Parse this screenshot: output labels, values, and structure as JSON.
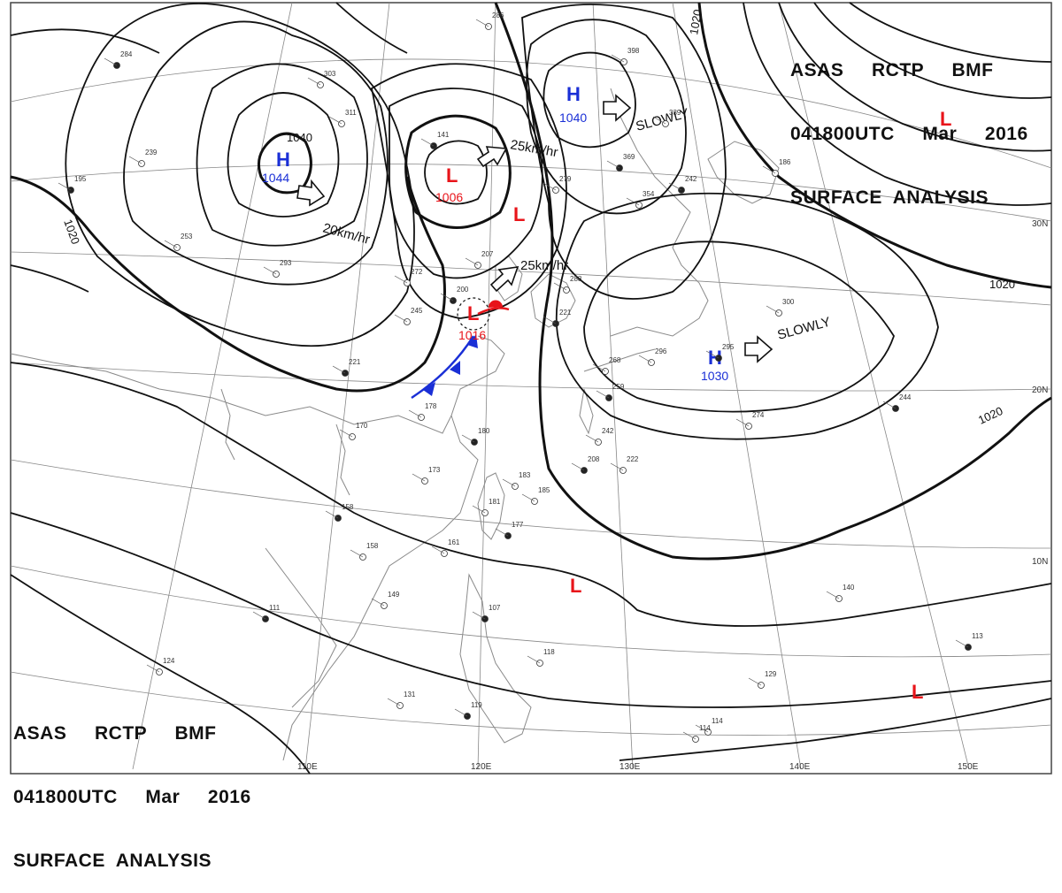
{
  "header_top_right": {
    "line1": "ASAS     RCTP     BMF",
    "line2": "041800UTC     Mar     2016",
    "line3": "SURFACE  ANALYSIS"
  },
  "header_bottom_left": {
    "line1": "ASAS     RCTP     BMF",
    "line2": "041800UTC     Mar     2016",
    "line3": "SURFACE  ANALYSIS"
  },
  "highs": [
    {
      "letter": "H",
      "value": "1044"
    },
    {
      "letter": "H",
      "value": "1040"
    },
    {
      "letter": "H",
      "value": "1030"
    }
  ],
  "lows": [
    {
      "letter": "L",
      "value": "1006"
    },
    {
      "letter": "L",
      "value": "1016"
    },
    {
      "letter": "L",
      "value": ""
    },
    {
      "letter": "L",
      "value": ""
    },
    {
      "letter": "L",
      "value": ""
    },
    {
      "letter": "L",
      "value": ""
    }
  ],
  "isobar_labels": [
    "1040",
    "1020",
    "1020",
    "1020",
    "1020"
  ],
  "movements": [
    "20km/hr",
    "25km/hr",
    "25km/hr",
    "SLOWLY",
    "SLOWLY"
  ],
  "latitude_labels": [
    "30N",
    "20N",
    "10N"
  ],
  "longitude_labels": [
    "110E",
    "120E",
    "130E",
    "140E",
    "150E"
  ],
  "colors": {
    "high": "#1a2fd6",
    "low": "#e8141a",
    "front": "#1a2fd6",
    "isobar": "#111111",
    "grid": "#777777",
    "coast": "#8a8a8a"
  },
  "stations": [
    "284",
    "303",
    "311",
    "141",
    "286",
    "207",
    "200",
    "245",
    "272",
    "221",
    "293",
    "253",
    "195",
    "239",
    "178",
    "180",
    "170",
    "173",
    "158",
    "158",
    "149",
    "111",
    "124",
    "131",
    "119",
    "118",
    "114",
    "107",
    "161",
    "181",
    "177",
    "185",
    "183",
    "208",
    "222",
    "242",
    "259",
    "268",
    "296",
    "295",
    "300",
    "274",
    "244",
    "140",
    "129",
    "113",
    "114",
    "354",
    "369",
    "398",
    "339",
    "242",
    "186",
    "288",
    "221",
    "279"
  ]
}
